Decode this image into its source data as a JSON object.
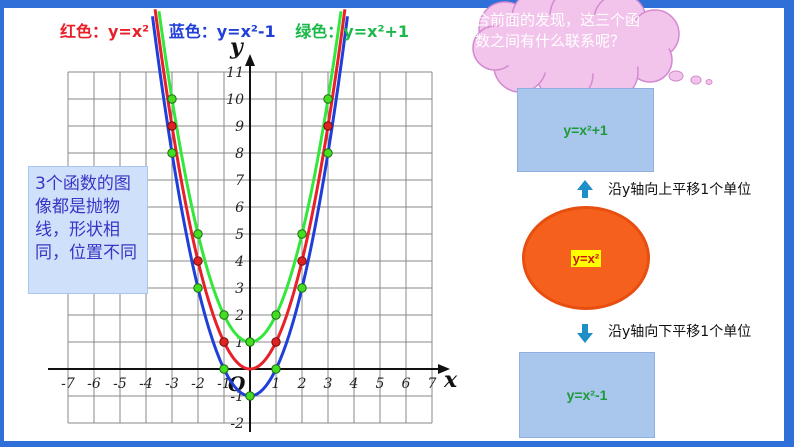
{
  "legend": {
    "red": "红色：y=x²",
    "blue": "蓝色：y=x²-1",
    "green": "绿色：y=x²+1"
  },
  "axes": {
    "x_label": "x",
    "y_label": "y",
    "origin_label": "O",
    "x_ticks": [
      "-7",
      "-6",
      "-5",
      "-4",
      "-3",
      "-2",
      "-1",
      "1",
      "2",
      "3",
      "4",
      "5",
      "6",
      "7"
    ],
    "y_ticks": [
      "11",
      "10",
      "9",
      "8",
      "7",
      "6",
      "5",
      "4",
      "3",
      "2",
      "1",
      "-1",
      "-2"
    ]
  },
  "colors": {
    "red": "#e8202a",
    "blue": "#1f3fd8",
    "green": "#33e83a",
    "marker_green": "#44dd22",
    "marker_red": "#dd2222"
  },
  "note": {
    "text": "3个函数的图像都是抛物线，形状相同，位置不同"
  },
  "cloud": {
    "text": "结合前面的发现，这三个函数之间有什么联系呢？"
  },
  "box_up": {
    "label": "y=x²+1"
  },
  "center": {
    "label": "y=x²"
  },
  "box_down": {
    "label": "y=x²-1"
  },
  "arrow_up": {
    "label": "沿y轴向上平移1个单位",
    "icon": "arrow-up-icon"
  },
  "arrow_down": {
    "label": "沿y轴向下平移1个单位",
    "icon": "arrow-down-icon"
  }
}
